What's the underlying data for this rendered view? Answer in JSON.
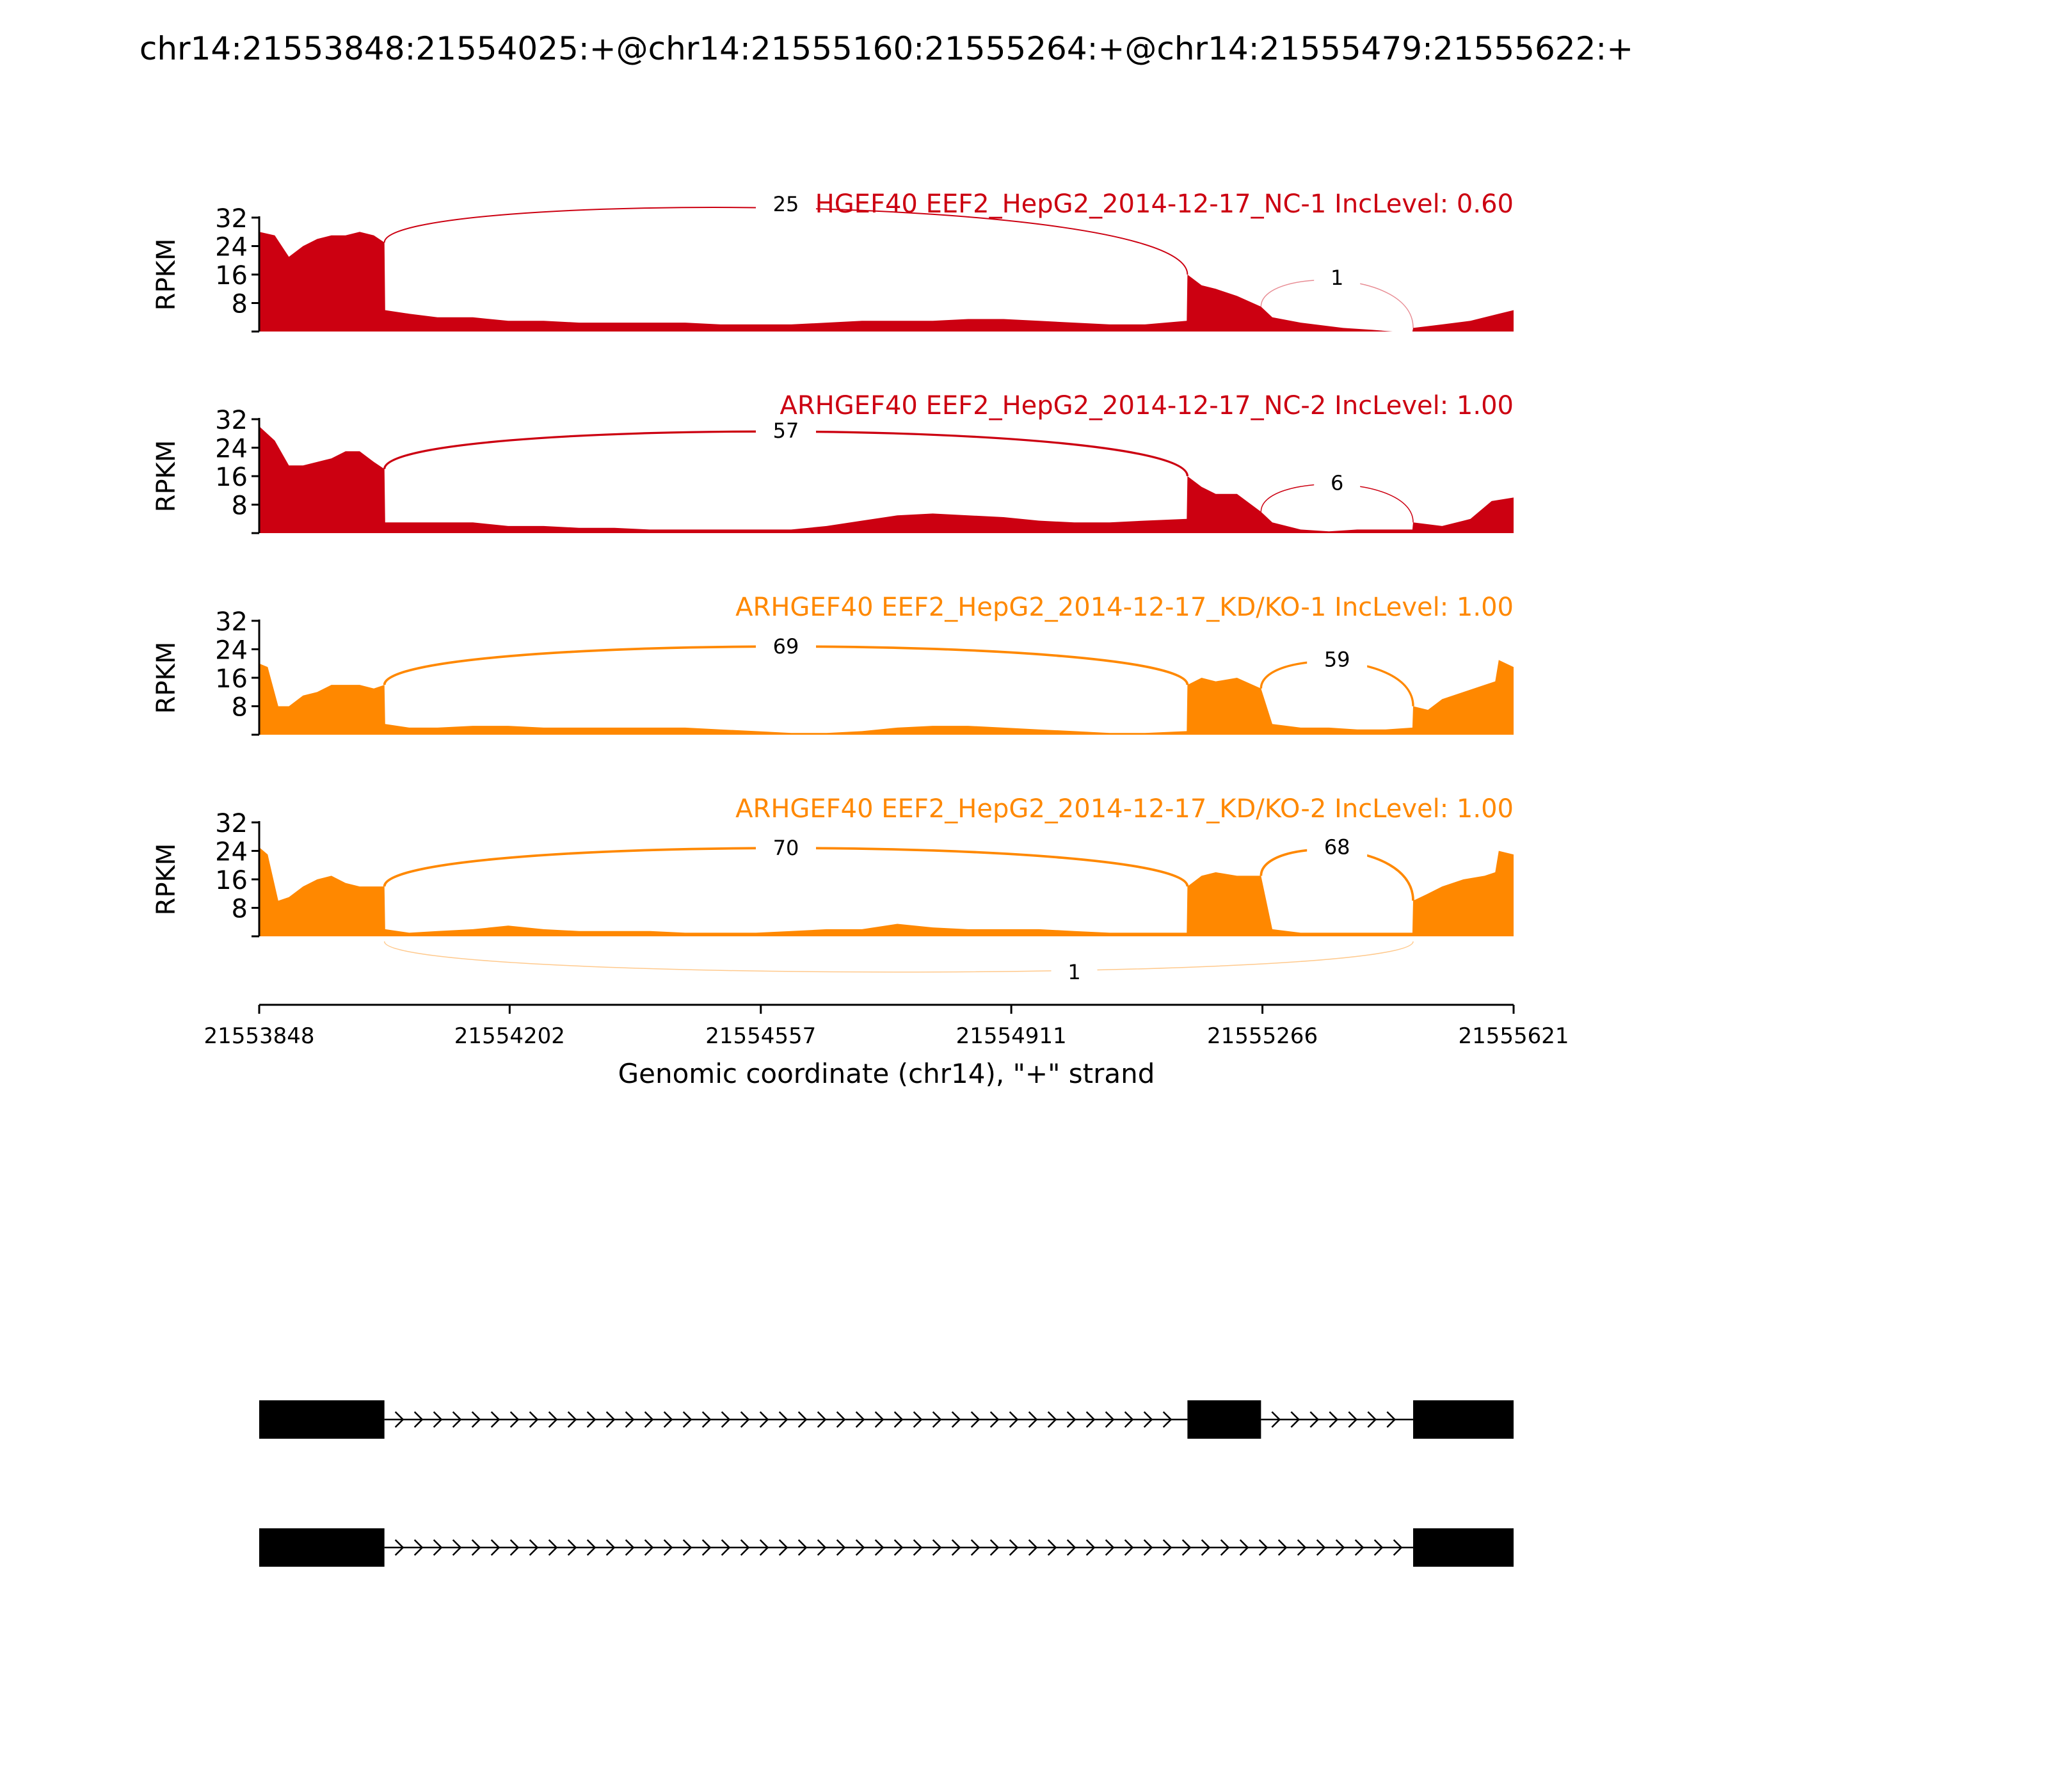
{
  "title": "chr14:21553848:21554025:+@chr14:21555160:21555264:+@chr14:21555479:21555622:+",
  "chart_data": {
    "type": "area",
    "title": "chr14:21553848:21554025:+@chr14:21555160:21555264:+@chr14:21555479:21555622:+",
    "xlabel": "Genomic coordinate (chr14), \"+\" strand",
    "ylabel": "RPKM",
    "xlim": [
      21553848,
      21555621
    ],
    "x_ticks": [
      21553848,
      21554202,
      21554557,
      21554911,
      21555266,
      21555621
    ],
    "ylim": [
      0,
      32
    ],
    "y_ticks": [
      8,
      16,
      24,
      32
    ],
    "exons": [
      [
        21553848,
        21554025
      ],
      [
        21555160,
        21555264
      ],
      [
        21555479,
        21555622
      ]
    ],
    "series": [
      {
        "name": "ARHGEF40 EEF2_HepG2_2014-12-17_NC-1 IncLevel: 0.60",
        "color": "#cc0011",
        "coverage": [
          [
            21553848,
            28
          ],
          [
            21553870,
            27
          ],
          [
            21553890,
            21
          ],
          [
            21553910,
            24
          ],
          [
            21553930,
            26
          ],
          [
            21553950,
            27
          ],
          [
            21553970,
            27
          ],
          [
            21553990,
            28
          ],
          [
            21554010,
            27
          ],
          [
            21554025,
            25
          ],
          [
            21554026,
            6
          ],
          [
            21554060,
            5
          ],
          [
            21554100,
            4
          ],
          [
            21554150,
            4
          ],
          [
            21554200,
            3
          ],
          [
            21554250,
            3
          ],
          [
            21554300,
            2.5
          ],
          [
            21554350,
            2.5
          ],
          [
            21554400,
            2.5
          ],
          [
            21554450,
            2.5
          ],
          [
            21554500,
            2
          ],
          [
            21554550,
            2
          ],
          [
            21554600,
            2
          ],
          [
            21554650,
            2.5
          ],
          [
            21554700,
            3
          ],
          [
            21554750,
            3
          ],
          [
            21554800,
            3
          ],
          [
            21554850,
            3.5
          ],
          [
            21554900,
            3.5
          ],
          [
            21554950,
            3
          ],
          [
            21555000,
            2.5
          ],
          [
            21555050,
            2
          ],
          [
            21555100,
            2
          ],
          [
            21555159,
            3
          ],
          [
            21555160,
            16
          ],
          [
            21555180,
            13
          ],
          [
            21555200,
            12
          ],
          [
            21555230,
            10
          ],
          [
            21555264,
            7
          ],
          [
            21555280,
            4
          ],
          [
            21555320,
            2.5
          ],
          [
            21555380,
            1
          ],
          [
            21555420,
            0.5
          ],
          [
            21555450,
            0
          ],
          [
            21555478,
            0
          ],
          [
            21555479,
            1
          ],
          [
            21555520,
            2
          ],
          [
            21555560,
            3
          ],
          [
            21555600,
            5
          ],
          [
            21555621,
            6
          ]
        ],
        "junctions": [
          {
            "start": 21554025,
            "end": 21555160,
            "count": 25
          },
          {
            "start": 21555264,
            "end": 21555479,
            "count": 1
          }
        ]
      },
      {
        "name": "ARHGEF40 EEF2_HepG2_2014-12-17_NC-2 IncLevel: 1.00",
        "color": "#cc0011",
        "coverage": [
          [
            21553848,
            30
          ],
          [
            21553870,
            26
          ],
          [
            21553890,
            19
          ],
          [
            21553910,
            19
          ],
          [
            21553930,
            20
          ],
          [
            21553950,
            21
          ],
          [
            21553970,
            23
          ],
          [
            21553990,
            23
          ],
          [
            21554010,
            20
          ],
          [
            21554025,
            18
          ],
          [
            21554026,
            3
          ],
          [
            21554060,
            3
          ],
          [
            21554100,
            3
          ],
          [
            21554150,
            3
          ],
          [
            21554200,
            2
          ],
          [
            21554250,
            2
          ],
          [
            21554300,
            1.5
          ],
          [
            21554350,
            1.5
          ],
          [
            21554400,
            1
          ],
          [
            21554450,
            1
          ],
          [
            21554500,
            1
          ],
          [
            21554550,
            1
          ],
          [
            21554600,
            1
          ],
          [
            21554650,
            2
          ],
          [
            21554700,
            3.5
          ],
          [
            21554750,
            5
          ],
          [
            21554800,
            5.5
          ],
          [
            21554850,
            5
          ],
          [
            21554900,
            4.5
          ],
          [
            21554950,
            3.5
          ],
          [
            21555000,
            3
          ],
          [
            21555050,
            3
          ],
          [
            21555100,
            3.5
          ],
          [
            21555159,
            4
          ],
          [
            21555160,
            16
          ],
          [
            21555180,
            13
          ],
          [
            21555200,
            11
          ],
          [
            21555230,
            11
          ],
          [
            21555264,
            6
          ],
          [
            21555280,
            3
          ],
          [
            21555320,
            1
          ],
          [
            21555360,
            0.5
          ],
          [
            21555400,
            1
          ],
          [
            21555440,
            1
          ],
          [
            21555478,
            1
          ],
          [
            21555479,
            3
          ],
          [
            21555520,
            2
          ],
          [
            21555560,
            4
          ],
          [
            21555590,
            9
          ],
          [
            21555621,
            10
          ]
        ],
        "junctions": [
          {
            "start": 21554025,
            "end": 21555160,
            "count": 57
          },
          {
            "start": 21555264,
            "end": 21555479,
            "count": 6
          }
        ]
      },
      {
        "name": "ARHGEF40 EEF2_HepG2_2014-12-17_KD/KO-1 IncLevel: 1.00",
        "color": "#ff8800",
        "coverage": [
          [
            21553848,
            20
          ],
          [
            21553860,
            19
          ],
          [
            21553875,
            8
          ],
          [
            21553890,
            8
          ],
          [
            21553910,
            11
          ],
          [
            21553930,
            12
          ],
          [
            21553950,
            14
          ],
          [
            21553970,
            14
          ],
          [
            21553990,
            14
          ],
          [
            21554010,
            13
          ],
          [
            21554025,
            14
          ],
          [
            21554026,
            3
          ],
          [
            21554060,
            2
          ],
          [
            21554100,
            2
          ],
          [
            21554150,
            2.5
          ],
          [
            21554200,
            2.5
          ],
          [
            21554250,
            2
          ],
          [
            21554300,
            2
          ],
          [
            21554350,
            2
          ],
          [
            21554400,
            2
          ],
          [
            21554450,
            2
          ],
          [
            21554500,
            1.5
          ],
          [
            21554550,
            1
          ],
          [
            21554600,
            0.5
          ],
          [
            21554650,
            0.5
          ],
          [
            21554700,
            1
          ],
          [
            21554750,
            2
          ],
          [
            21554800,
            2.5
          ],
          [
            21554850,
            2.5
          ],
          [
            21554900,
            2
          ],
          [
            21554950,
            1.5
          ],
          [
            21555000,
            1
          ],
          [
            21555050,
            0.5
          ],
          [
            21555100,
            0.5
          ],
          [
            21555159,
            1
          ],
          [
            21555160,
            14
          ],
          [
            21555180,
            16
          ],
          [
            21555200,
            15
          ],
          [
            21555230,
            16
          ],
          [
            21555264,
            13
          ],
          [
            21555280,
            3
          ],
          [
            21555320,
            2
          ],
          [
            21555360,
            2
          ],
          [
            21555400,
            1.5
          ],
          [
            21555440,
            1.5
          ],
          [
            21555478,
            2
          ],
          [
            21555479,
            8
          ],
          [
            21555500,
            7
          ],
          [
            21555520,
            10
          ],
          [
            21555550,
            12
          ],
          [
            21555580,
            14
          ],
          [
            21555595,
            15
          ],
          [
            21555600,
            21
          ],
          [
            21555621,
            19
          ]
        ],
        "junctions": [
          {
            "start": 21554025,
            "end": 21555160,
            "count": 69
          },
          {
            "start": 21555264,
            "end": 21555479,
            "count": 59
          }
        ]
      },
      {
        "name": "ARHGEF40 EEF2_HepG2_2014-12-17_KD/KO-2 IncLevel: 1.00",
        "color": "#ff8800",
        "coverage": [
          [
            21553848,
            25
          ],
          [
            21553860,
            23
          ],
          [
            21553875,
            10
          ],
          [
            21553890,
            11
          ],
          [
            21553910,
            14
          ],
          [
            21553930,
            16
          ],
          [
            21553950,
            17
          ],
          [
            21553970,
            15
          ],
          [
            21553990,
            14
          ],
          [
            21554010,
            14
          ],
          [
            21554025,
            14
          ],
          [
            21554026,
            2
          ],
          [
            21554060,
            1
          ],
          [
            21554100,
            1.5
          ],
          [
            21554150,
            2
          ],
          [
            21554200,
            3
          ],
          [
            21554250,
            2
          ],
          [
            21554300,
            1.5
          ],
          [
            21554350,
            1.5
          ],
          [
            21554400,
            1.5
          ],
          [
            21554450,
            1
          ],
          [
            21554500,
            1
          ],
          [
            21554550,
            1
          ],
          [
            21554600,
            1.5
          ],
          [
            21554650,
            2
          ],
          [
            21554700,
            2
          ],
          [
            21554750,
            3.5
          ],
          [
            21554800,
            2.5
          ],
          [
            21554850,
            2
          ],
          [
            21554900,
            2
          ],
          [
            21554950,
            2
          ],
          [
            21555000,
            1.5
          ],
          [
            21555050,
            1
          ],
          [
            21555100,
            1
          ],
          [
            21555159,
            1
          ],
          [
            21555160,
            14
          ],
          [
            21555180,
            17
          ],
          [
            21555200,
            18
          ],
          [
            21555230,
            17
          ],
          [
            21555264,
            17
          ],
          [
            21555280,
            2
          ],
          [
            21555320,
            1
          ],
          [
            21555360,
            1
          ],
          [
            21555400,
            1
          ],
          [
            21555440,
            1
          ],
          [
            21555478,
            1
          ],
          [
            21555479,
            10
          ],
          [
            21555500,
            12
          ],
          [
            21555520,
            14
          ],
          [
            21555550,
            16
          ],
          [
            21555580,
            17
          ],
          [
            21555595,
            18
          ],
          [
            21555600,
            24
          ],
          [
            21555621,
            23
          ]
        ],
        "junctions": [
          {
            "start": 21554025,
            "end": 21555160,
            "count": 70
          },
          {
            "start": 21555264,
            "end": 21555479,
            "count": 68
          },
          {
            "start": 21554025,
            "end": 21555479,
            "count": 1
          }
        ]
      }
    ],
    "transcripts": [
      {
        "exons": [
          [
            21553848,
            21554025
          ],
          [
            21555160,
            21555264
          ],
          [
            21555479,
            21555621
          ]
        ]
      },
      {
        "exons": [
          [
            21553848,
            21554025
          ],
          [
            21555479,
            21555621
          ]
        ]
      }
    ]
  }
}
